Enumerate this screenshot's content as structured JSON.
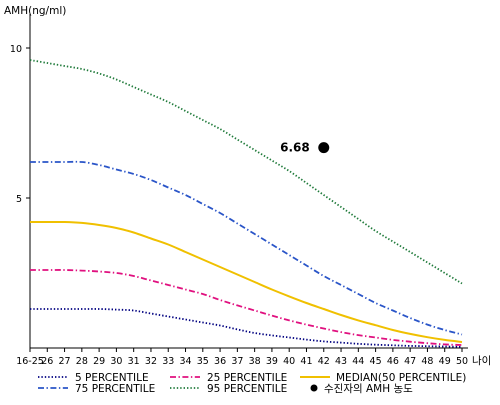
{
  "chart_data": {
    "type": "line",
    "y_axis_label": "AMH(ng/ml)",
    "x_axis_label": "나이",
    "ylim": [
      0,
      11
    ],
    "y_ticks": [
      "5",
      "10"
    ],
    "y_tick_values": [
      5,
      10
    ],
    "x_tick_labels": [
      "16-25",
      "26",
      "27",
      "28",
      "29",
      "30",
      "31",
      "32",
      "33",
      "34",
      "35",
      "36",
      "37",
      "38",
      "39",
      "40",
      "41",
      "42",
      "43",
      "44",
      "45",
      "46",
      "47",
      "48",
      "49",
      "50"
    ],
    "grid": false,
    "legend_position": "bottom",
    "series": [
      {
        "name": "5 PERCENTILE",
        "color": "#000080",
        "style": "dotted",
        "values": [
          1.3,
          1.3,
          1.3,
          1.3,
          1.3,
          1.28,
          1.25,
          1.15,
          1.05,
          0.95,
          0.85,
          0.75,
          0.62,
          0.5,
          0.42,
          0.35,
          0.28,
          0.22,
          0.18,
          0.14,
          0.11,
          0.09,
          0.07,
          0.06,
          0.05,
          0.04
        ]
      },
      {
        "name": "25 PERCENTILE",
        "color": "#e0107f",
        "style": "dashdot",
        "values": [
          2.6,
          2.6,
          2.6,
          2.58,
          2.55,
          2.5,
          2.4,
          2.25,
          2.1,
          1.95,
          1.8,
          1.6,
          1.42,
          1.25,
          1.08,
          0.92,
          0.78,
          0.65,
          0.53,
          0.43,
          0.35,
          0.27,
          0.21,
          0.16,
          0.12,
          0.1
        ]
      },
      {
        "name": "MEDIAN(50 PERCENTILE)",
        "color": "#f0c000",
        "style": "solid",
        "values": [
          4.2,
          4.2,
          4.2,
          4.17,
          4.1,
          4.0,
          3.85,
          3.65,
          3.45,
          3.2,
          2.95,
          2.7,
          2.45,
          2.2,
          1.95,
          1.72,
          1.5,
          1.3,
          1.1,
          0.92,
          0.76,
          0.6,
          0.47,
          0.36,
          0.27,
          0.2
        ]
      },
      {
        "name": "75 PERCENTILE",
        "color": "#2a55c8",
        "style": "dashdot",
        "values": [
          6.2,
          6.2,
          6.2,
          6.2,
          6.1,
          5.95,
          5.8,
          5.6,
          5.35,
          5.1,
          4.8,
          4.5,
          4.15,
          3.8,
          3.45,
          3.1,
          2.75,
          2.4,
          2.1,
          1.8,
          1.5,
          1.25,
          1.0,
          0.78,
          0.6,
          0.45
        ]
      },
      {
        "name": "95 PERCENTILE",
        "color": "#1f7a3a",
        "style": "dotted",
        "values": [
          9.6,
          9.5,
          9.4,
          9.3,
          9.15,
          8.95,
          8.7,
          8.45,
          8.2,
          7.9,
          7.6,
          7.3,
          6.95,
          6.6,
          6.25,
          5.9,
          5.5,
          5.1,
          4.7,
          4.3,
          3.9,
          3.55,
          3.2,
          2.85,
          2.5,
          2.15
        ]
      }
    ],
    "marker": {
      "name": "수진자의 AMH 농도",
      "x": "42",
      "y": 6.68,
      "label": "6.68",
      "color": "#000000"
    }
  }
}
